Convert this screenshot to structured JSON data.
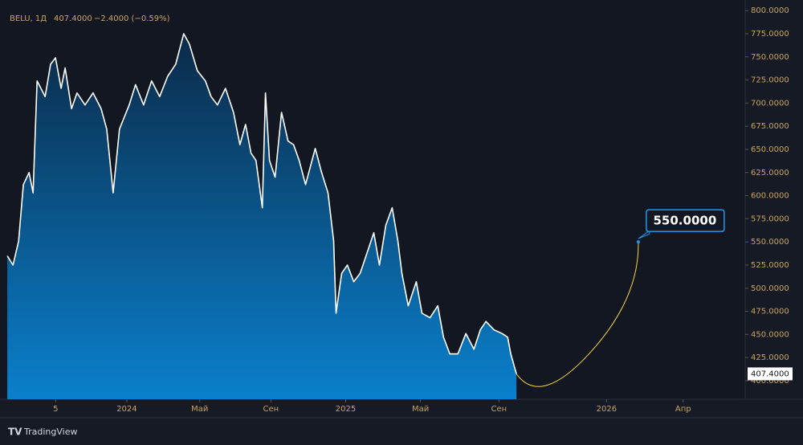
{
  "chart_data": {
    "type": "area",
    "symbol": "BELU, 1Д",
    "last_price": "407.4000",
    "change": "−2.4000 (−0.59%)",
    "price_label": "407.4000",
    "brand": "TradingView",
    "series": [
      {
        "name": "BELU",
        "color": "#ffffff",
        "x": [
          -6.55,
          -6.24,
          -5.93,
          -5.67,
          -5.36,
          -5.14,
          -4.92,
          -4.48,
          -4.18,
          -3.91,
          -3.6,
          -3.38,
          -3.03,
          -2.73,
          -2.29,
          -1.85,
          -1.41,
          -1.1,
          -0.75,
          -0.4,
          0.13,
          0.48,
          0.92,
          1.36,
          1.8,
          2.24,
          2.68,
          3.12,
          3.43,
          3.87,
          4.31,
          4.62,
          4.97,
          5.41,
          5.85,
          6.2,
          6.51,
          6.81,
          7.08,
          7.43,
          7.6,
          7.82,
          8.13,
          8.48,
          8.84,
          9.14,
          9.45,
          9.8,
          10.33,
          10.68,
          11.03,
          11.34,
          11.47,
          11.78,
          12.09,
          12.44,
          12.79,
          13.1,
          13.54,
          13.85,
          14.2,
          14.55,
          14.86,
          15.08,
          15.43,
          15.87,
          16.18,
          16.62,
          17.05,
          17.36,
          17.71,
          18.15,
          18.59,
          19.03,
          19.38,
          19.69,
          20.13,
          20.57,
          20.88,
          21.05,
          21.36
        ],
        "values": [
          535,
          525,
          551,
          612,
          625,
          603,
          724,
          707,
          742,
          749,
          716,
          738,
          694,
          711,
          698,
          711,
          694,
          672,
          603,
          672,
          698,
          720,
          698,
          724,
          707,
          729,
          742,
          775,
          764,
          735,
          724,
          707,
          698,
          716,
          690,
          655,
          677,
          646,
          638,
          587,
          711,
          638,
          620,
          690,
          659,
          655,
          638,
          612,
          651,
          625,
          603,
          551,
          473,
          516,
          525,
          507,
          516,
          534,
          560,
          525,
          568,
          587,
          551,
          516,
          481,
          507,
          473,
          468,
          481,
          447,
          429,
          429,
          451,
          434,
          455,
          464,
          455,
          451,
          447,
          429,
          407.4
        ]
      }
    ],
    "annotation": {
      "label": "550.0000",
      "value": 550,
      "x": 28.04
    },
    "xlim": [
      -6.6,
      33.9
    ],
    "xticks": [
      {
        "value": -3.9,
        "label": "5"
      },
      {
        "value": 0,
        "label": "2024"
      },
      {
        "value": 4,
        "label": "Май"
      },
      {
        "value": 7.9,
        "label": "Сен"
      },
      {
        "value": 12,
        "label": "2025"
      },
      {
        "value": 16.1,
        "label": "Май"
      },
      {
        "value": 20.4,
        "label": "Сен"
      },
      {
        "value": 26.3,
        "label": "2026"
      },
      {
        "value": 30.5,
        "label": "Апр"
      }
    ],
    "ylim": [
      380,
      808
    ],
    "yticks": [
      {
        "value": 400,
        "label": "400.0000"
      },
      {
        "value": 425,
        "label": "425.0000"
      },
      {
        "value": 450,
        "label": "450.0000"
      },
      {
        "value": 475,
        "label": "475.0000"
      },
      {
        "value": 500,
        "label": "500.0000"
      },
      {
        "value": 525,
        "label": "525.0000"
      },
      {
        "value": 550,
        "label": "550.0000"
      },
      {
        "value": 575,
        "label": "575.0000"
      },
      {
        "value": 600,
        "label": "600.0000"
      },
      {
        "value": 625,
        "label": "625.0000"
      },
      {
        "value": 650,
        "label": "650.0000"
      },
      {
        "value": 675,
        "label": "675.0000"
      },
      {
        "value": 700,
        "label": "700.0000"
      },
      {
        "value": 725,
        "label": "725.0000"
      },
      {
        "value": 750,
        "label": "750.0000"
      },
      {
        "value": 775,
        "label": "775.0000"
      },
      {
        "value": 800,
        "label": "800.0000"
      }
    ],
    "grid": false
  }
}
